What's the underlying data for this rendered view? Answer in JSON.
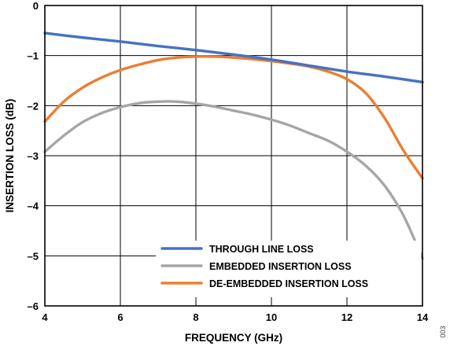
{
  "chart_data": {
    "type": "line",
    "title": "",
    "xlabel": "FREQUENCY (GHz)",
    "ylabel": "INSERTION LOSS (dB)",
    "xlim": [
      4,
      14
    ],
    "ylim": [
      -6,
      0
    ],
    "x_ticks": [
      4,
      6,
      8,
      10,
      12,
      14
    ],
    "y_ticks": [
      0,
      -1,
      -2,
      -3,
      -4,
      -5,
      -6
    ],
    "x_tick_labels": [
      "4",
      "6",
      "8",
      "10",
      "12",
      "14"
    ],
    "y_tick_labels": [
      "0",
      "–1",
      "–2",
      "–3",
      "–4",
      "–5",
      "–6"
    ],
    "grid": true,
    "legend_position": "bottom-right",
    "series": [
      {
        "name": "THROUGH LINE LOSS",
        "color": "#4472C4",
        "x": [
          4,
          5,
          6,
          7,
          8,
          9,
          10,
          11,
          12,
          13,
          14
        ],
        "y": [
          -0.55,
          -0.64,
          -0.72,
          -0.81,
          -0.89,
          -0.98,
          -1.08,
          -1.2,
          -1.32,
          -1.42,
          -1.53
        ]
      },
      {
        "name": "EMBEDDED INSERTION LOSS",
        "color": "#A6A6A6",
        "x": [
          4,
          4.5,
          5,
          5.5,
          6,
          6.5,
          7,
          7.5,
          8,
          8.5,
          9,
          9.5,
          10,
          10.5,
          11,
          11.5,
          12,
          12.5,
          13,
          13.5,
          14
        ],
        "y": [
          -2.92,
          -2.6,
          -2.33,
          -2.15,
          -2.03,
          -1.95,
          -1.92,
          -1.92,
          -1.96,
          -2.02,
          -2.1,
          -2.18,
          -2.28,
          -2.4,
          -2.55,
          -2.7,
          -2.92,
          -3.2,
          -3.6,
          -4.2,
          -5.05
        ]
      },
      {
        "name": "DE-EMBEDDED INSERTION LOSS",
        "color": "#ED7D31",
        "x": [
          4,
          4.5,
          5,
          5.5,
          6,
          6.5,
          7,
          7.5,
          8,
          8.5,
          9,
          9.5,
          10,
          10.5,
          11,
          11.5,
          12,
          12.5,
          13,
          13.5,
          14
        ],
        "y": [
          -2.32,
          -1.92,
          -1.64,
          -1.44,
          -1.29,
          -1.18,
          -1.09,
          -1.04,
          -1.02,
          -1.02,
          -1.04,
          -1.07,
          -1.11,
          -1.16,
          -1.22,
          -1.32,
          -1.47,
          -1.75,
          -2.25,
          -2.9,
          -3.45
        ]
      }
    ]
  },
  "figure_id": "003"
}
